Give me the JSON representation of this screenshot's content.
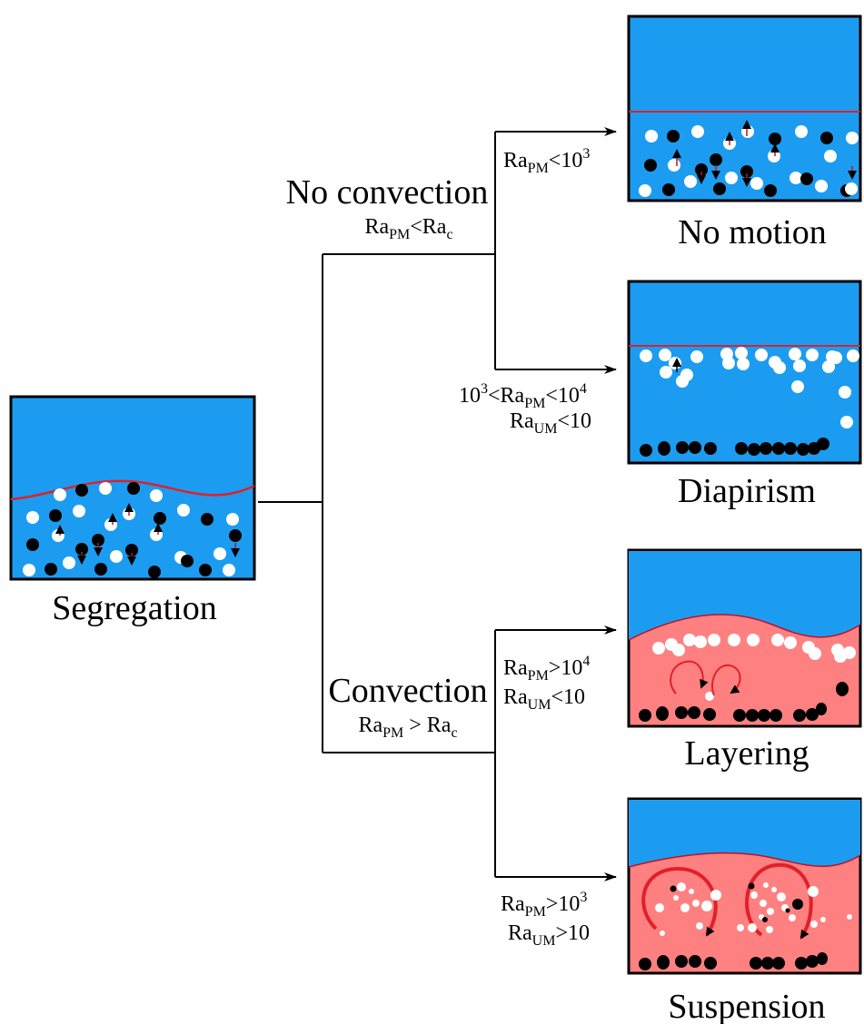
{
  "stages": {
    "segregation": "Segregation",
    "no_motion": "No motion",
    "diapirism": "Diapirism",
    "layering": "Layering",
    "suspension": "Suspension"
  },
  "branches": {
    "no_convection": {
      "title": "No convection",
      "cond": {
        "a": "Ra",
        "a_sub": "PM",
        "op": "<",
        "b": "Ra",
        "b_sub": "c"
      }
    },
    "convection": {
      "title": "Convection",
      "cond": {
        "a": "Ra",
        "a_sub": "PM",
        "op": " > ",
        "b": "Ra",
        "b_sub": "c"
      }
    }
  },
  "arrow_conditions": {
    "no_motion": {
      "pm_op": "<10",
      "pm_exp": "3"
    },
    "diapirism": {
      "pm_pre": "10",
      "pm_pre_exp": "3",
      "pm_mid": "<Ra",
      "pm_op": "<10",
      "pm_exp": "4",
      "um_op": "<10"
    },
    "layering": {
      "pm_op": ">10",
      "pm_exp": "4",
      "um_op": "<10"
    },
    "suspension": {
      "pm_op": ">10",
      "pm_exp": "3",
      "um_op": ">10"
    }
  },
  "symbols": {
    "ra": "Ra",
    "pm": "PM",
    "um": "UM"
  },
  "colors": {
    "ocean_blue": "#1c9cf0",
    "convecting_pink": "#ff8080",
    "interface_red": "#e0202a",
    "stroke": "#000000"
  }
}
